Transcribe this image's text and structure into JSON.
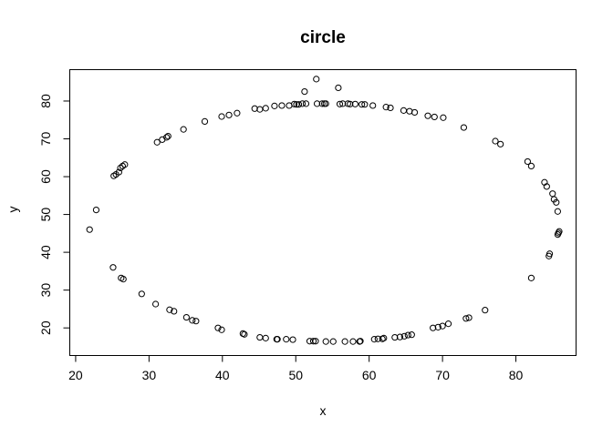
{
  "chart_data": {
    "type": "scatter",
    "title": "circle",
    "xlabel": "x",
    "ylabel": "y",
    "xlim": [
      19.2,
      88.2
    ],
    "ylim": [
      12.7,
      88.3
    ],
    "xticks": [
      20,
      30,
      40,
      50,
      60,
      70,
      80
    ],
    "yticks": [
      20,
      30,
      40,
      50,
      60,
      70,
      80
    ],
    "grid": false,
    "legend": "none",
    "points": [
      [
        21.9,
        46.0
      ],
      [
        22.8,
        51.2
      ],
      [
        25.1,
        36.0
      ],
      [
        25.2,
        60.2
      ],
      [
        25.5,
        60.6
      ],
      [
        25.9,
        61.2
      ],
      [
        26.1,
        62.3
      ],
      [
        26.4,
        62.8
      ],
      [
        26.7,
        63.2
      ],
      [
        26.2,
        33.2
      ],
      [
        26.5,
        32.9
      ],
      [
        29.0,
        29.0
      ],
      [
        30.9,
        26.3
      ],
      [
        31.1,
        69.1
      ],
      [
        31.8,
        69.8
      ],
      [
        32.4,
        70.4
      ],
      [
        32.6,
        70.7
      ],
      [
        32.8,
        24.8
      ],
      [
        33.4,
        24.4
      ],
      [
        34.7,
        72.5
      ],
      [
        35.1,
        22.8
      ],
      [
        35.9,
        22.0
      ],
      [
        36.4,
        21.8
      ],
      [
        37.6,
        74.6
      ],
      [
        39.4,
        20.0
      ],
      [
        39.9,
        19.5
      ],
      [
        39.9,
        75.9
      ],
      [
        40.9,
        76.3
      ],
      [
        42.0,
        76.8
      ],
      [
        42.8,
        18.5
      ],
      [
        43.0,
        18.3
      ],
      [
        44.4,
        78.0
      ],
      [
        45.1,
        17.5
      ],
      [
        45.1,
        77.8
      ],
      [
        45.9,
        17.3
      ],
      [
        45.9,
        78.1
      ],
      [
        47.1,
        78.7
      ],
      [
        47.4,
        17.0
      ],
      [
        47.5,
        17.0
      ],
      [
        48.1,
        78.8
      ],
      [
        48.7,
        17.0
      ],
      [
        49.1,
        78.8
      ],
      [
        49.6,
        16.9
      ],
      [
        49.8,
        79.2
      ],
      [
        50.1,
        79.1
      ],
      [
        50.4,
        79.1
      ],
      [
        50.9,
        79.3
      ],
      [
        51.2,
        82.5
      ],
      [
        51.4,
        79.3
      ],
      [
        51.9,
        16.5
      ],
      [
        52.4,
        16.5
      ],
      [
        52.7,
        16.5
      ],
      [
        52.9,
        79.3
      ],
      [
        52.8,
        85.8
      ],
      [
        53.6,
        79.3
      ],
      [
        53.9,
        79.3
      ],
      [
        54.1,
        79.3
      ],
      [
        54.1,
        16.4
      ],
      [
        55.1,
        16.4
      ],
      [
        55.8,
        83.5
      ],
      [
        56.0,
        79.2
      ],
      [
        56.4,
        79.3
      ],
      [
        56.7,
        16.4
      ],
      [
        57.1,
        79.3
      ],
      [
        57.4,
        79.2
      ],
      [
        57.8,
        16.4
      ],
      [
        58.1,
        79.2
      ],
      [
        58.7,
        16.4
      ],
      [
        58.8,
        16.5
      ],
      [
        59.0,
        79.1
      ],
      [
        59.4,
        79.1
      ],
      [
        60.5,
        78.8
      ],
      [
        60.7,
        17.0
      ],
      [
        61.2,
        17.1
      ],
      [
        61.8,
        17.1
      ],
      [
        62.0,
        17.3
      ],
      [
        62.3,
        78.4
      ],
      [
        62.9,
        78.2
      ],
      [
        63.5,
        17.5
      ],
      [
        64.2,
        17.6
      ],
      [
        64.7,
        77.5
      ],
      [
        64.8,
        17.8
      ],
      [
        65.3,
        18.1
      ],
      [
        65.5,
        77.3
      ],
      [
        65.8,
        18.2
      ],
      [
        66.2,
        77.0
      ],
      [
        68.0,
        76.1
      ],
      [
        68.7,
        20.0
      ],
      [
        68.9,
        75.8
      ],
      [
        69.4,
        20.2
      ],
      [
        70.0,
        20.5
      ],
      [
        70.1,
        75.6
      ],
      [
        70.8,
        21.1
      ],
      [
        72.9,
        73.0
      ],
      [
        73.2,
        22.5
      ],
      [
        73.6,
        22.7
      ],
      [
        75.8,
        24.7
      ],
      [
        77.2,
        69.4
      ],
      [
        77.9,
        68.6
      ],
      [
        81.6,
        64.0
      ],
      [
        82.1,
        62.8
      ],
      [
        82.1,
        33.2
      ],
      [
        83.9,
        58.5
      ],
      [
        84.2,
        57.4
      ],
      [
        84.5,
        39.0
      ],
      [
        84.6,
        39.6
      ],
      [
        85.0,
        55.5
      ],
      [
        85.2,
        54.0
      ],
      [
        85.5,
        53.2
      ],
      [
        85.7,
        50.8
      ],
      [
        85.7,
        44.7
      ],
      [
        85.8,
        45.1
      ],
      [
        85.9,
        45.5
      ]
    ]
  }
}
